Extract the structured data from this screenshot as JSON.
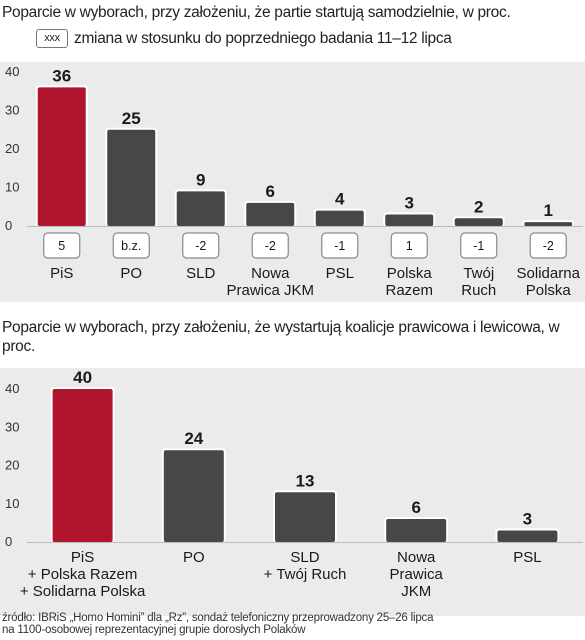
{
  "chart_data": [
    {
      "type": "bar",
      "title": "Poparcie w wyborach, przy założeniu, że partie startują samodzielnie, w proc.",
      "legend_box": "xxx",
      "legend_text": "zmiana w stosunku do poprzedniego badania 11–12 lipca",
      "yticks": [
        "40",
        "30",
        "20",
        "10",
        "0"
      ],
      "ylim": [
        0,
        40
      ],
      "categories": [
        [
          "PiS"
        ],
        [
          "PO"
        ],
        [
          "SLD"
        ],
        [
          "Nowa",
          "Prawica JKM"
        ],
        [
          "PSL"
        ],
        [
          "Polska",
          "Razem"
        ],
        [
          "Twój",
          "Ruch"
        ],
        [
          "Solidarna",
          "Polska"
        ]
      ],
      "values": [
        36,
        25,
        9,
        6,
        4,
        3,
        2,
        1
      ],
      "changes": [
        "5",
        "b.z.",
        "-2",
        "-2",
        "-1",
        "1",
        "-1",
        "-2"
      ],
      "highlight_color": "#b0152e",
      "bar_color": "#474747",
      "background": "#ebebeb"
    },
    {
      "type": "bar",
      "title": "Poparcie w wyborach, przy założeniu, że wystartują koalicje prawicowa i lewicowa, w proc.",
      "yticks": [
        "40",
        "30",
        "20",
        "10",
        "0"
      ],
      "ylim": [
        0,
        40
      ],
      "categories": [
        [
          "PiS",
          "+ Polska Razem",
          "+ Solidarna Polska"
        ],
        [
          "PO"
        ],
        [
          "SLD",
          "+ Twój Ruch"
        ],
        [
          "Nowa",
          "Prawica",
          "JKM"
        ],
        [
          "PSL"
        ]
      ],
      "values": [
        40,
        24,
        13,
        6,
        3
      ],
      "highlight_color": "#b0152e",
      "bar_color": "#474747",
      "background": "#ebebeb"
    }
  ],
  "source": [
    "źródło: IBRiS „Homo Homini” dla „Rz”, sondaż telefoniczny przeprowadzony 25–26 lipca",
    "na 1100-osobowej reprezentacyjnej grupie dorosłych Polaków"
  ]
}
